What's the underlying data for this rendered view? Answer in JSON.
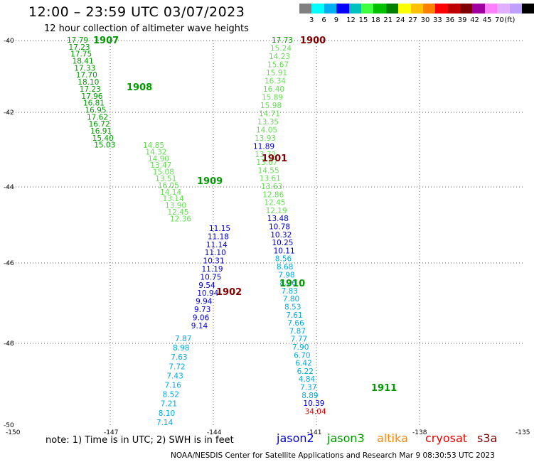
{
  "header": {
    "title": "12:00 – 23:59 UTC 03/07/2023",
    "subtitle": "12 hour collection of altimeter wave heights"
  },
  "color_scale": {
    "colors": [
      "#808080",
      "#00ffff",
      "#00b0f0",
      "#0000ff",
      "#00c0c0",
      "#40ff40",
      "#00c000",
      "#008000",
      "#ffff00",
      "#ffc000",
      "#ff8000",
      "#ff0000",
      "#c00000",
      "#800000",
      "#a000a0",
      "#ff80ff",
      "#e0b0ff",
      "#c0a0ff",
      "#000000"
    ],
    "labels": [
      "3",
      "6",
      "9",
      "12",
      "15",
      "18",
      "21",
      "24",
      "27",
      "30",
      "33",
      "36",
      "39",
      "42",
      "45",
      "70",
      "(ft)"
    ]
  },
  "axes": {
    "lat_labels": [
      "-40",
      "-42",
      "-44",
      "-46",
      "-48",
      "-50"
    ],
    "lon_labels": [
      "-150",
      "-147",
      "-144",
      "-141",
      "-138",
      "-135"
    ]
  },
  "colors": {
    "c_light_green": "#66dd55",
    "c_green": "#009900",
    "c_dark_green": "#008000",
    "c_blue": "#0000cc",
    "c_cyan": "#00aadd",
    "c_dark_red": "#800000",
    "c_red": "#dd0000"
  },
  "tracks": [
    {
      "color": "c_green",
      "values": [
        "17.79",
        "17.23",
        "17.75",
        "18.41",
        "17.33",
        "17.70",
        "18.10",
        "17.23",
        "17.96",
        "16.81",
        "16.95",
        "17.62",
        "16.72",
        "16.91",
        "15.40",
        "15.03"
      ]
    },
    {
      "color": "c_light_green",
      "values": [
        "14.85",
        "14.32",
        "14.90",
        "13.47",
        "15.08",
        "13.51",
        "16.05",
        "14.14",
        "13.14",
        "13.90",
        "12.45",
        "12.36"
      ]
    },
    {
      "color": "c_blue",
      "values": [
        "11.15",
        "11.18",
        "11.14",
        "11.10",
        "10.31",
        "11.19",
        "10.75",
        "9.54",
        "10.94",
        "9.94",
        "9.73",
        "9.06",
        "9.14"
      ]
    },
    {
      "color": "c_cyan",
      "values": [
        "7.87",
        "8.98",
        "7.63",
        "7.72",
        "7.43",
        "7.16",
        "8.52",
        "7.21",
        "8.10",
        "7.14"
      ]
    },
    {
      "color": "c_green",
      "values": [
        "17.73",
        "15.24",
        "14.23",
        "15.67",
        "15.91",
        "16.34",
        "16.40",
        "15.89",
        "15.98",
        "14.71",
        "13.35",
        "14.05",
        "13.93",
        "11.89",
        "13.72",
        "13.07",
        "14.55",
        "13.61",
        "13.63",
        "12.86",
        "12.45",
        "12.19",
        "13.48",
        "10.78",
        "10.32",
        "10.25",
        "10.11",
        "8.56",
        "8.68",
        "7.98",
        "8.26",
        "7.83",
        "7.80",
        "8.53",
        "7.61",
        "7.66",
        "7.87",
        "7.77",
        "7.90",
        "6.70",
        "6.42",
        "6.22",
        "4.84",
        "7.37",
        "8.89",
        "10.39",
        "34.04"
      ]
    }
  ],
  "hour_labels": [
    {
      "label": "1907",
      "color": "c_green"
    },
    {
      "label": "1908",
      "color": "c_green"
    },
    {
      "label": "1909",
      "color": "c_green"
    },
    {
      "label": "1900",
      "color": "c_dark_red"
    },
    {
      "label": "1901",
      "color": "c_dark_red"
    },
    {
      "label": "1902",
      "color": "c_dark_red"
    },
    {
      "label": "1910",
      "color": "c_green"
    },
    {
      "label": "1911",
      "color": "c_green"
    }
  ],
  "note": "note:  1) Time is in UTC;  2) SWH is in feet",
  "satellites": [
    {
      "name": "jason2",
      "color": "#0000dd"
    },
    {
      "name": "jason3",
      "color": "#009900"
    },
    {
      "name": "altika",
      "color": "#ff8800"
    },
    {
      "name": "cryosat",
      "color": "#ee0000"
    },
    {
      "name": "s3a",
      "color": "#800000"
    }
  ],
  "footer": "NOAA/NESDIS Center for Satellite Applications and Research    Mar  9 08:30:53 UTC 2023"
}
